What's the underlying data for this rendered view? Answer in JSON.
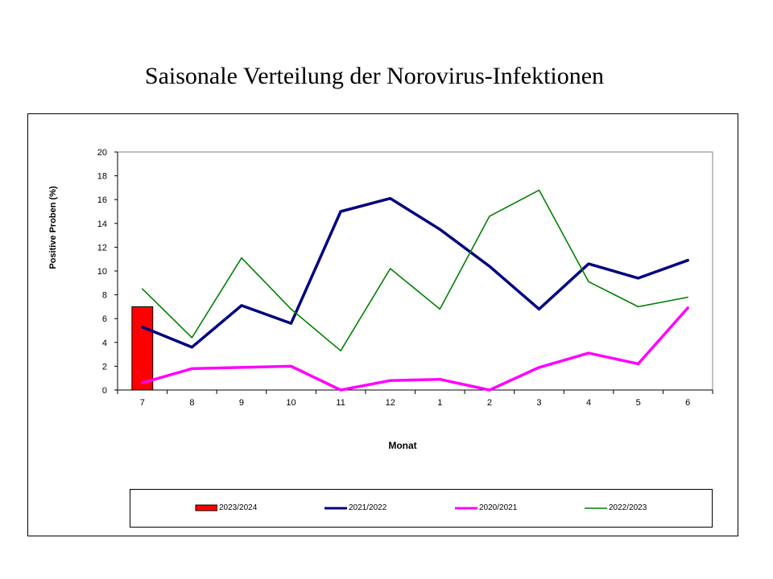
{
  "page": {
    "title": "Saisonale Verteilung der Norovirus-Infektionen"
  },
  "chart_data": {
    "type": "line",
    "title": "Saisonale Verteilung der Norovirus-Infektionen",
    "xlabel": "Monat",
    "ylabel": "Positive Proben (%)",
    "categories": [
      "7",
      "8",
      "9",
      "10",
      "11",
      "12",
      "1",
      "2",
      "3",
      "4",
      "5",
      "6"
    ],
    "ylim": [
      0,
      20
    ],
    "yticks": [
      "0",
      "2",
      "4",
      "6",
      "8",
      "10",
      "12",
      "14",
      "16",
      "18",
      "20"
    ],
    "grid": false,
    "legend_position": "bottom",
    "series": [
      {
        "name": "2023/2024",
        "kind": "bar",
        "color": "#ff0000",
        "values": [
          7.0,
          null,
          null,
          null,
          null,
          null,
          null,
          null,
          null,
          null,
          null,
          null
        ]
      },
      {
        "name": "2021/2022",
        "kind": "line",
        "color": "#000080",
        "values": [
          5.3,
          3.6,
          7.1,
          5.6,
          15.0,
          16.1,
          13.5,
          10.4,
          6.8,
          10.6,
          9.4,
          10.9
        ]
      },
      {
        "name": "2020/2021",
        "kind": "line",
        "color": "#ff00ff",
        "values": [
          0.6,
          1.8,
          1.9,
          2.0,
          0.0,
          0.8,
          0.9,
          0.0,
          1.9,
          3.1,
          2.2,
          6.9
        ]
      },
      {
        "name": "2022/2023",
        "kind": "line",
        "color": "#008000",
        "values": [
          8.5,
          4.4,
          11.1,
          6.8,
          3.3,
          10.2,
          6.8,
          14.6,
          16.8,
          9.1,
          7.0,
          7.8
        ]
      }
    ]
  }
}
